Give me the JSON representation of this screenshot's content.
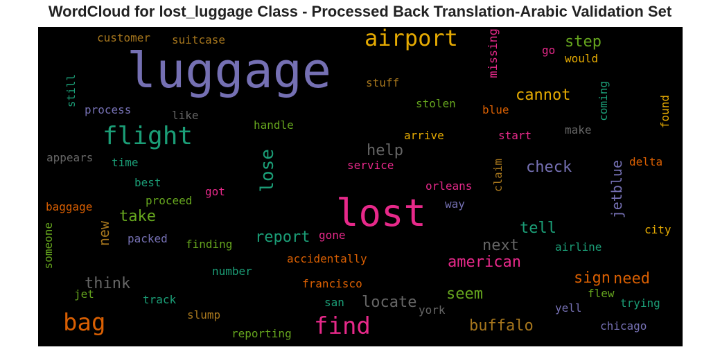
{
  "chart_data": {
    "type": "wordcloud",
    "title": "WordCloud for lost_luggage Class - Processed Back Translation-Arabic Validation Set",
    "background": "#000000",
    "palette": [
      "#7570b3",
      "#e7298a",
      "#1b9e77",
      "#d95f02",
      "#e6ab02",
      "#66a61e",
      "#a6761d",
      "#666666"
    ],
    "words": [
      {
        "text": "luggage",
        "color": "#7570b3"
      },
      {
        "text": "lost",
        "color": "#e7298a"
      },
      {
        "text": "airport",
        "color": "#e6ab02"
      },
      {
        "text": "flight",
        "color": "#1b9e77"
      },
      {
        "text": "bag",
        "color": "#d95f02"
      },
      {
        "text": "find",
        "color": "#e7298a"
      },
      {
        "text": "lose",
        "color": "#1b9e77",
        "vertical": true
      },
      {
        "text": "customer",
        "color": "#a6761d"
      },
      {
        "text": "suitcase",
        "color": "#a6761d"
      },
      {
        "text": "missing",
        "color": "#e7298a",
        "vertical": true
      },
      {
        "text": "step",
        "color": "#66a61e"
      },
      {
        "text": "go",
        "color": "#e7298a"
      },
      {
        "text": "would",
        "color": "#e6ab02"
      },
      {
        "text": "still",
        "color": "#1b9e77",
        "vertical": true
      },
      {
        "text": "stuff",
        "color": "#a6761d"
      },
      {
        "text": "cannot",
        "color": "#e6ab02"
      },
      {
        "text": "coming",
        "color": "#1b9e77",
        "vertical": true
      },
      {
        "text": "found",
        "color": "#e6ab02",
        "vertical": true
      },
      {
        "text": "process",
        "color": "#7570b3"
      },
      {
        "text": "like",
        "color": "#666666"
      },
      {
        "text": "stolen",
        "color": "#66a61e"
      },
      {
        "text": "blue",
        "color": "#d95f02"
      },
      {
        "text": "handle",
        "color": "#66a61e"
      },
      {
        "text": "make",
        "color": "#666666"
      },
      {
        "text": "arrive",
        "color": "#e6ab02"
      },
      {
        "text": "start",
        "color": "#e7298a"
      },
      {
        "text": "help",
        "color": "#666666"
      },
      {
        "text": "appears",
        "color": "#666666"
      },
      {
        "text": "time",
        "color": "#1b9e77"
      },
      {
        "text": "service",
        "color": "#e7298a"
      },
      {
        "text": "check",
        "color": "#7570b3"
      },
      {
        "text": "claim",
        "color": "#a6761d",
        "vertical": true
      },
      {
        "text": "jetblue",
        "color": "#7570b3",
        "vertical": true
      },
      {
        "text": "delta",
        "color": "#d95f02"
      },
      {
        "text": "best",
        "color": "#1b9e77"
      },
      {
        "text": "orleans",
        "color": "#e7298a"
      },
      {
        "text": "got",
        "color": "#e7298a"
      },
      {
        "text": "proceed",
        "color": "#66a61e"
      },
      {
        "text": "way",
        "color": "#7570b3"
      },
      {
        "text": "baggage",
        "color": "#d95f02"
      },
      {
        "text": "take",
        "color": "#66a61e"
      },
      {
        "text": "new",
        "color": "#a6761d",
        "vertical": true
      },
      {
        "text": "tell",
        "color": "#1b9e77"
      },
      {
        "text": "city",
        "color": "#e6ab02"
      },
      {
        "text": "someone",
        "color": "#66a61e",
        "vertical": true
      },
      {
        "text": "packed",
        "color": "#7570b3"
      },
      {
        "text": "report",
        "color": "#1b9e77"
      },
      {
        "text": "gone",
        "color": "#e7298a"
      },
      {
        "text": "finding",
        "color": "#66a61e"
      },
      {
        "text": "next",
        "color": "#666666"
      },
      {
        "text": "airline",
        "color": "#1b9e77"
      },
      {
        "text": "accidentally",
        "color": "#d95f02"
      },
      {
        "text": "american",
        "color": "#e7298a"
      },
      {
        "text": "number",
        "color": "#1b9e77"
      },
      {
        "text": "think",
        "color": "#666666"
      },
      {
        "text": "sign",
        "color": "#d95f02"
      },
      {
        "text": "need",
        "color": "#d95f02"
      },
      {
        "text": "francisco",
        "color": "#d95f02"
      },
      {
        "text": "seem",
        "color": "#66a61e"
      },
      {
        "text": "jet",
        "color": "#66a61e"
      },
      {
        "text": "flew",
        "color": "#66a61e"
      },
      {
        "text": "track",
        "color": "#1b9e77"
      },
      {
        "text": "locate",
        "color": "#666666"
      },
      {
        "text": "trying",
        "color": "#1b9e77"
      },
      {
        "text": "san",
        "color": "#1b9e77"
      },
      {
        "text": "yell",
        "color": "#7570b3"
      },
      {
        "text": "slump",
        "color": "#a6761d"
      },
      {
        "text": "york",
        "color": "#666666"
      },
      {
        "text": "buffalo",
        "color": "#a6761d"
      },
      {
        "text": "chicago",
        "color": "#7570b3"
      },
      {
        "text": "reporting",
        "color": "#66a61e"
      }
    ]
  }
}
